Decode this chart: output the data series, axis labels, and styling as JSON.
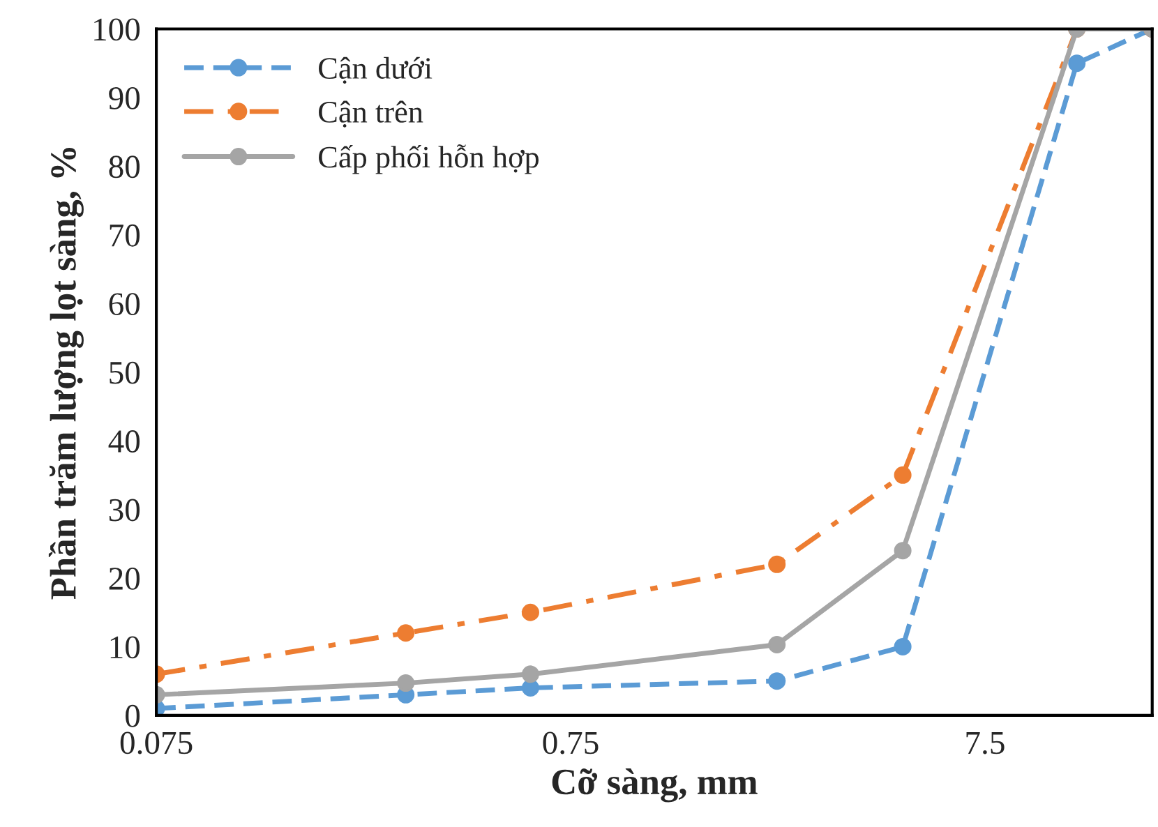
{
  "chart_data": {
    "type": "line",
    "xlabel": "Cỡ sàng, mm",
    "ylabel": "Phần trăm lượng lọt sàng, %",
    "log": "x",
    "x": [
      0.075,
      0.3,
      0.6,
      2.36,
      4.75,
      12.5,
      19
    ],
    "xlim": [
      0.075,
      19
    ],
    "xticks": [
      0.075,
      0.75,
      7.5
    ],
    "ylim": [
      0,
      100
    ],
    "yticks": [
      0,
      10,
      20,
      30,
      40,
      50,
      60,
      70,
      80,
      90,
      100
    ],
    "grid": false,
    "legend": "top left",
    "marker": "circle",
    "series": [
      {
        "name": "Cận dưới",
        "color": "#5b9bd5",
        "line_style": "dashed",
        "values": [
          1,
          3,
          4,
          5,
          10,
          95,
          100
        ]
      },
      {
        "name": "Cận trên",
        "color": "#ed7d31",
        "line_style": "dashdot",
        "values": [
          6,
          12,
          15,
          22,
          35,
          100,
          100
        ]
      },
      {
        "name": "Cấp phối hỗn hợp",
        "color": "#a5a5a5",
        "line_style": "solid",
        "values": [
          3,
          4.7,
          6,
          10.3,
          24,
          100,
          100
        ]
      }
    ]
  }
}
